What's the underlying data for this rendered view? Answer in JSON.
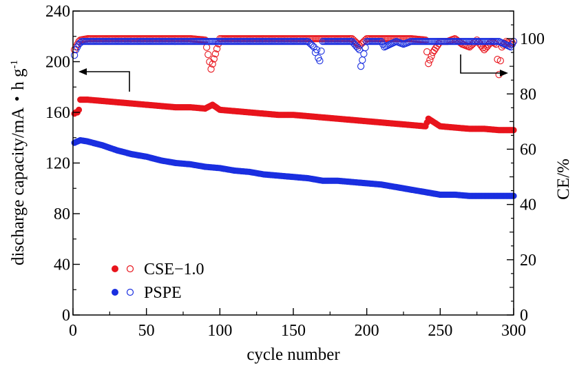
{
  "colors": {
    "cse": "#e8141c",
    "pspe": "#1a2fe0",
    "axis": "#000000"
  },
  "chart_data": {
    "type": "scatter",
    "title": "",
    "xlabel": "cycle number",
    "ylabel": "discharge capacity/mA・h g",
    "ylabel_sup": "-1",
    "y2label": "CE/%",
    "xlim": [
      0,
      300
    ],
    "ylim": [
      0,
      240
    ],
    "y2lim": [
      0,
      110
    ],
    "x_ticks": [
      "0",
      "50",
      "100",
      "150",
      "200",
      "250",
      "300"
    ],
    "y_ticks": [
      "0",
      "40",
      "80",
      "120",
      "160",
      "200",
      "240"
    ],
    "y2_ticks": [
      "0",
      "20",
      "40",
      "60",
      "80",
      "100"
    ],
    "legend": {
      "position": "bottom-left",
      "entries": [
        "CSE−1.0",
        "PSPE"
      ]
    },
    "annotations": {
      "left_arrow": "points to left axis (capacity)",
      "right_arrow": "points to right axis (CE)"
    },
    "series": [
      {
        "name": "CSE−1.0",
        "axis": "left",
        "marker": "filled",
        "color": "#e8141c",
        "points": [
          [
            1,
            159
          ],
          [
            2,
            160
          ],
          [
            3,
            160
          ],
          [
            4,
            162
          ],
          [
            5,
            170
          ],
          [
            10,
            170
          ],
          [
            20,
            169
          ],
          [
            30,
            168
          ],
          [
            40,
            167
          ],
          [
            50,
            166
          ],
          [
            60,
            165
          ],
          [
            70,
            164
          ],
          [
            80,
            164
          ],
          [
            90,
            163
          ],
          [
            95,
            166
          ],
          [
            100,
            162
          ],
          [
            110,
            161
          ],
          [
            120,
            160
          ],
          [
            130,
            159
          ],
          [
            140,
            158
          ],
          [
            150,
            158
          ],
          [
            160,
            157
          ],
          [
            170,
            156
          ],
          [
            180,
            155
          ],
          [
            190,
            154
          ],
          [
            200,
            153
          ],
          [
            210,
            152
          ],
          [
            220,
            151
          ],
          [
            230,
            150
          ],
          [
            240,
            149
          ],
          [
            242,
            155
          ],
          [
            250,
            149
          ],
          [
            260,
            148
          ],
          [
            270,
            147
          ],
          [
            280,
            147
          ],
          [
            290,
            146
          ],
          [
            300,
            146
          ]
        ]
      },
      {
        "name": "CSE−1.0 CE",
        "axis": "right",
        "marker": "open",
        "color": "#e8141c",
        "points": [
          [
            1,
            96
          ],
          [
            2,
            97
          ],
          [
            3,
            98
          ],
          [
            4,
            99
          ],
          [
            5,
            99.5
          ],
          [
            10,
            100
          ],
          [
            20,
            100
          ],
          [
            30,
            100
          ],
          [
            40,
            100
          ],
          [
            50,
            100
          ],
          [
            60,
            100
          ],
          [
            70,
            100
          ],
          [
            80,
            100
          ],
          [
            90,
            99.5
          ],
          [
            94,
            89
          ],
          [
            100,
            100
          ],
          [
            110,
            100
          ],
          [
            120,
            100
          ],
          [
            130,
            100
          ],
          [
            140,
            100
          ],
          [
            150,
            100
          ],
          [
            160,
            100
          ],
          [
            170,
            100
          ],
          [
            180,
            100
          ],
          [
            190,
            100
          ],
          [
            195,
            97.5
          ],
          [
            200,
            100
          ],
          [
            210,
            100
          ],
          [
            220,
            100
          ],
          [
            230,
            100
          ],
          [
            240,
            99.5
          ],
          [
            242,
            91
          ],
          [
            245,
            95
          ],
          [
            250,
            99
          ],
          [
            255,
            99
          ],
          [
            260,
            100
          ],
          [
            265,
            98
          ],
          [
            270,
            97
          ],
          [
            275,
            99.5
          ],
          [
            280,
            96
          ],
          [
            285,
            99
          ],
          [
            288,
            98
          ],
          [
            290,
            87
          ],
          [
            292,
            97
          ],
          [
            295,
            99
          ],
          [
            298,
            98
          ],
          [
            300,
            99
          ]
        ]
      },
      {
        "name": "PSPE",
        "axis": "left",
        "marker": "filled",
        "color": "#1a2fe0",
        "points": [
          [
            1,
            136
          ],
          [
            3,
            137
          ],
          [
            5,
            138
          ],
          [
            10,
            137
          ],
          [
            20,
            134
          ],
          [
            30,
            130
          ],
          [
            40,
            127
          ],
          [
            50,
            125
          ],
          [
            60,
            122
          ],
          [
            70,
            120
          ],
          [
            80,
            119
          ],
          [
            90,
            117
          ],
          [
            100,
            116
          ],
          [
            110,
            114
          ],
          [
            120,
            113
          ],
          [
            130,
            111
          ],
          [
            140,
            110
          ],
          [
            150,
            109
          ],
          [
            160,
            108
          ],
          [
            170,
            106
          ],
          [
            180,
            106
          ],
          [
            190,
            105
          ],
          [
            200,
            104
          ],
          [
            210,
            103
          ],
          [
            220,
            101
          ],
          [
            230,
            99
          ],
          [
            240,
            97
          ],
          [
            250,
            95
          ],
          [
            260,
            95
          ],
          [
            270,
            94
          ],
          [
            280,
            94
          ],
          [
            290,
            94
          ],
          [
            300,
            94
          ]
        ]
      },
      {
        "name": "PSPE CE",
        "axis": "right",
        "marker": "open",
        "color": "#1a2fe0",
        "points": [
          [
            1,
            94
          ],
          [
            2,
            96
          ],
          [
            4,
            98
          ],
          [
            6,
            99
          ],
          [
            10,
            99
          ],
          [
            20,
            99
          ],
          [
            30,
            99
          ],
          [
            40,
            99
          ],
          [
            50,
            99
          ],
          [
            60,
            99
          ],
          [
            70,
            99
          ],
          [
            80,
            99
          ],
          [
            90,
            99
          ],
          [
            100,
            99
          ],
          [
            110,
            99
          ],
          [
            120,
            99
          ],
          [
            130,
            99
          ],
          [
            140,
            99
          ],
          [
            150,
            99
          ],
          [
            160,
            99
          ],
          [
            164,
            97
          ],
          [
            165,
            95
          ],
          [
            166,
            96
          ],
          [
            167,
            93
          ],
          [
            168,
            92
          ],
          [
            170,
            99
          ],
          [
            180,
            99
          ],
          [
            190,
            99
          ],
          [
            195,
            96
          ],
          [
            196,
            90
          ],
          [
            200,
            99
          ],
          [
            210,
            99
          ],
          [
            212,
            97
          ],
          [
            220,
            99
          ],
          [
            225,
            98
          ],
          [
            230,
            99
          ],
          [
            240,
            99
          ],
          [
            250,
            99
          ],
          [
            260,
            99
          ],
          [
            270,
            99
          ],
          [
            280,
            99
          ],
          [
            290,
            99
          ],
          [
            298,
            97
          ],
          [
            300,
            99
          ]
        ]
      }
    ]
  }
}
